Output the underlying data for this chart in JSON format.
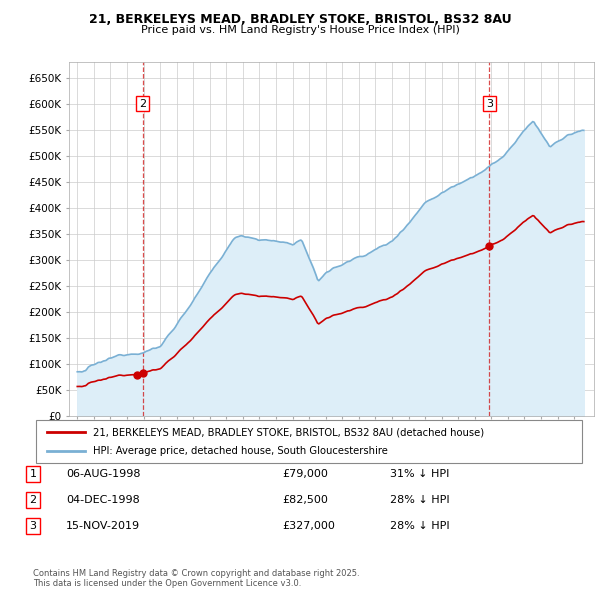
{
  "title1": "21, BERKELEYS MEAD, BRADLEY STOKE, BRISTOL, BS32 8AU",
  "title2": "Price paid vs. HM Land Registry's House Price Index (HPI)",
  "ylabel_ticks": [
    "£0",
    "£50K",
    "£100K",
    "£150K",
    "£200K",
    "£250K",
    "£300K",
    "£350K",
    "£400K",
    "£450K",
    "£500K",
    "£550K",
    "£600K",
    "£650K"
  ],
  "ytick_values": [
    0,
    50000,
    100000,
    150000,
    200000,
    250000,
    300000,
    350000,
    400000,
    450000,
    500000,
    550000,
    600000,
    650000
  ],
  "ylim": [
    0,
    680000
  ],
  "sale_years": [
    1998.625,
    1998.958,
    2019.875
  ],
  "sale_prices": [
    79000,
    82500,
    327000
  ],
  "sale_labels": [
    "1",
    "2",
    "3"
  ],
  "chart_labels": [
    "2",
    "3"
  ],
  "chart_label_years": [
    1998.958,
    2019.875
  ],
  "sale_marker_color": "#cc0000",
  "hpi_line_color": "#7ab0d4",
  "hpi_fill_color": "#ddeef8",
  "sale_line_color": "#cc0000",
  "vline_color": "#cc0000",
  "legend_sale_label": "21, BERKELEYS MEAD, BRADLEY STOKE, BRISTOL, BS32 8AU (detached house)",
  "legend_hpi_label": "HPI: Average price, detached house, South Gloucestershire",
  "table_rows": [
    {
      "num": "1",
      "date": "06-AUG-1998",
      "price": "£79,000",
      "note": "31% ↓ HPI"
    },
    {
      "num": "2",
      "date": "04-DEC-1998",
      "price": "£82,500",
      "note": "28% ↓ HPI"
    },
    {
      "num": "3",
      "date": "15-NOV-2019",
      "price": "£327,000",
      "note": "28% ↓ HPI"
    }
  ],
  "footer": "Contains HM Land Registry data © Crown copyright and database right 2025.\nThis data is licensed under the Open Government Licence v3.0.",
  "bg_color": "#ffffff",
  "grid_color": "#cccccc",
  "xlim_start": 1994.5,
  "xlim_end": 2026.2
}
